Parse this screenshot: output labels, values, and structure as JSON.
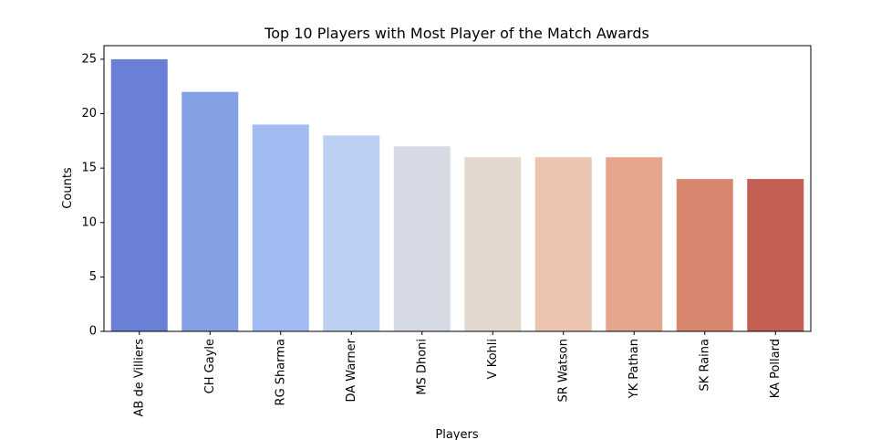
{
  "chart_data": {
    "type": "bar",
    "title": "Top 10 Players with Most Player of the Match Awards",
    "xlabel": "Players",
    "ylabel": "Counts",
    "categories": [
      "AB de Villiers",
      "CH Gayle",
      "RG Sharma",
      "DA Warner",
      "MS Dhoni",
      "V Kohli",
      "SR Watson",
      "YK Pathan",
      "SK Raina",
      "KA Pollard"
    ],
    "values": [
      25,
      22,
      19,
      18,
      17,
      16,
      16,
      16,
      14,
      14
    ],
    "colors": [
      "#6a80d6",
      "#85a1e6",
      "#a2bbf3",
      "#bdcff2",
      "#d5dae4",
      "#e3d7ce",
      "#ecc5b1",
      "#e6a68d",
      "#d8876f",
      "#c35f53"
    ],
    "ylim": [
      0,
      26.25
    ],
    "yticks": [
      0,
      5,
      10,
      15,
      20,
      25
    ],
    "grid": false,
    "legend": "none"
  }
}
